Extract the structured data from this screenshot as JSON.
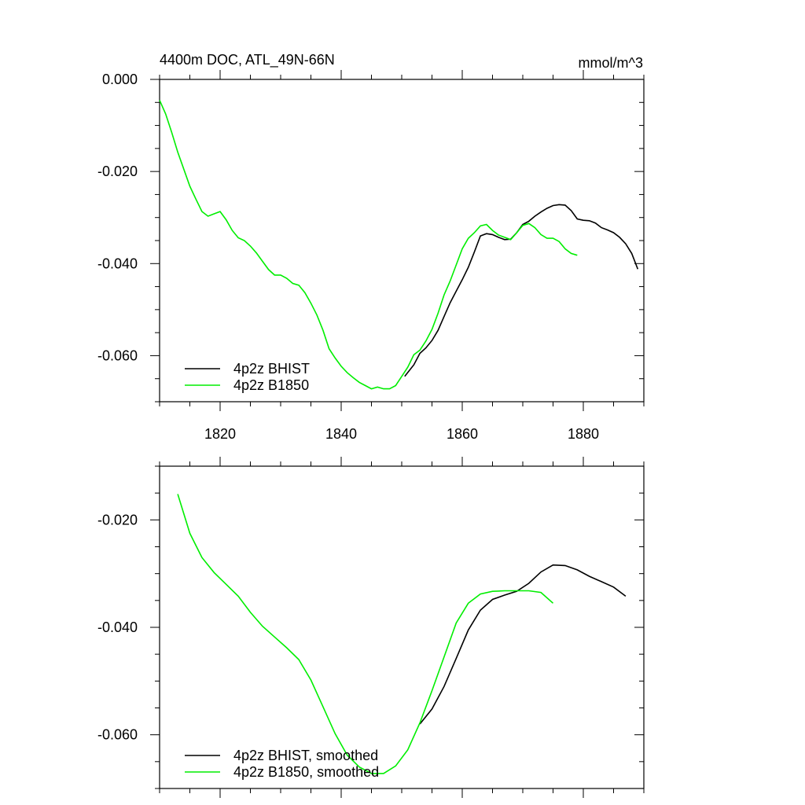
{
  "chart_data": [
    {
      "type": "line",
      "title": "4400m DOC, ATL_49N-66N",
      "units_label": "mmol/m^3",
      "xlim": [
        1810,
        1890
      ],
      "ylim": [
        -0.07,
        0.0
      ],
      "xticks": [
        1820,
        1840,
        1860,
        1880
      ],
      "xtick_labels": [
        "1820",
        "1840",
        "1860",
        "1880"
      ],
      "yticks": [
        0.0,
        -0.02,
        -0.04,
        -0.06
      ],
      "ytick_labels": [
        "0.000",
        "-0.020",
        "-0.040",
        "-0.060"
      ],
      "legend_position": "bottom-left",
      "series": [
        {
          "name": "4p2z BHIST",
          "color": "#000000",
          "x": [
            1850.5,
            1852,
            1853,
            1854,
            1855,
            1856,
            1857,
            1858,
            1859,
            1860,
            1861,
            1862,
            1863,
            1864,
            1865,
            1866,
            1867,
            1868,
            1869,
            1870,
            1871,
            1872,
            1873,
            1874,
            1875,
            1876,
            1877,
            1878,
            1879,
            1880,
            1881,
            1882,
            1883,
            1884,
            1885,
            1886,
            1887,
            1888,
            1889
          ],
          "y": [
            -0.0645,
            -0.062,
            -0.0595,
            -0.0583,
            -0.0567,
            -0.0545,
            -0.0515,
            -0.0485,
            -0.046,
            -0.0435,
            -0.0408,
            -0.0375,
            -0.034,
            -0.0335,
            -0.0337,
            -0.0343,
            -0.0348,
            -0.0347,
            -0.0333,
            -0.0315,
            -0.0308,
            -0.0297,
            -0.0288,
            -0.028,
            -0.0274,
            -0.0272,
            -0.0273,
            -0.0285,
            -0.0303,
            -0.0306,
            -0.0307,
            -0.0312,
            -0.0322,
            -0.0327,
            -0.0333,
            -0.0343,
            -0.0357,
            -0.0378,
            -0.0412
          ]
        },
        {
          "name": "4p2z B1850",
          "color": "#00ee00",
          "x": [
            1810,
            1811,
            1812,
            1813,
            1814,
            1815,
            1816,
            1817,
            1818,
            1819,
            1820,
            1821,
            1822,
            1823,
            1824,
            1825,
            1826,
            1827,
            1828,
            1829,
            1830,
            1831,
            1832,
            1833,
            1834,
            1835,
            1836,
            1837,
            1838,
            1839,
            1840,
            1841,
            1842,
            1843,
            1844,
            1845,
            1846,
            1847,
            1848,
            1849,
            1850,
            1851,
            1852,
            1853,
            1854,
            1855,
            1856,
            1857,
            1858,
            1859,
            1860,
            1861,
            1862,
            1863,
            1864,
            1865,
            1866,
            1867,
            1868,
            1869,
            1870,
            1871,
            1872,
            1873,
            1874,
            1875,
            1876,
            1877,
            1878,
            1879
          ],
          "y": [
            -0.0045,
            -0.0075,
            -0.0115,
            -0.0158,
            -0.0195,
            -0.0232,
            -0.026,
            -0.0287,
            -0.0297,
            -0.0292,
            -0.0287,
            -0.0305,
            -0.0328,
            -0.0344,
            -0.035,
            -0.0362,
            -0.0377,
            -0.0395,
            -0.0413,
            -0.0425,
            -0.0425,
            -0.0432,
            -0.0443,
            -0.0447,
            -0.0463,
            -0.0486,
            -0.0512,
            -0.0545,
            -0.0585,
            -0.0605,
            -0.0623,
            -0.0637,
            -0.0648,
            -0.0658,
            -0.0665,
            -0.0672,
            -0.0668,
            -0.0672,
            -0.0672,
            -0.0665,
            -0.0645,
            -0.0625,
            -0.0598,
            -0.0588,
            -0.0568,
            -0.0543,
            -0.0508,
            -0.0468,
            -0.0438,
            -0.0403,
            -0.0368,
            -0.0345,
            -0.0333,
            -0.0318,
            -0.0315,
            -0.0328,
            -0.0338,
            -0.0343,
            -0.0348,
            -0.0333,
            -0.0317,
            -0.0313,
            -0.0322,
            -0.0337,
            -0.0345,
            -0.0345,
            -0.0352,
            -0.0368,
            -0.0378,
            -0.0382
          ]
        }
      ]
    },
    {
      "type": "line",
      "title": "",
      "xlim": [
        1810,
        1890
      ],
      "ylim": [
        -0.07,
        -0.01
      ],
      "xticks": [
        1820,
        1840,
        1860,
        1880
      ],
      "yticks": [
        -0.02,
        -0.04,
        -0.06
      ],
      "ytick_labels": [
        "-0.020",
        "-0.040",
        "-0.060"
      ],
      "legend_position": "bottom-left",
      "series": [
        {
          "name": "4p2z BHIST, smoothed",
          "color": "#000000",
          "x": [
            1853,
            1855,
            1857,
            1859,
            1861,
            1863,
            1865,
            1867,
            1869,
            1871,
            1873,
            1875,
            1877,
            1879,
            1881,
            1883,
            1885,
            1887
          ],
          "y": [
            -0.058,
            -0.0552,
            -0.051,
            -0.0458,
            -0.0405,
            -0.0368,
            -0.0348,
            -0.034,
            -0.0333,
            -0.0318,
            -0.0297,
            -0.0284,
            -0.0285,
            -0.0293,
            -0.0305,
            -0.0315,
            -0.0325,
            -0.0342
          ]
        },
        {
          "name": "4p2z B1850, smoothed",
          "color": "#00ee00",
          "x": [
            1813,
            1815,
            1817,
            1819,
            1821,
            1823,
            1825,
            1827,
            1829,
            1831,
            1833,
            1835,
            1837,
            1839,
            1841,
            1843,
            1845,
            1847,
            1849,
            1851,
            1853,
            1855,
            1857,
            1859,
            1861,
            1863,
            1865,
            1867,
            1869,
            1871,
            1873,
            1875
          ],
          "y": [
            -0.0152,
            -0.0225,
            -0.027,
            -0.0298,
            -0.032,
            -0.0342,
            -0.0372,
            -0.0398,
            -0.0418,
            -0.0438,
            -0.046,
            -0.0498,
            -0.0548,
            -0.0598,
            -0.0638,
            -0.066,
            -0.0672,
            -0.0672,
            -0.0658,
            -0.0628,
            -0.0578,
            -0.0518,
            -0.0455,
            -0.0392,
            -0.0355,
            -0.0338,
            -0.0333,
            -0.0332,
            -0.0332,
            -0.0332,
            -0.0335,
            -0.0355
          ]
        }
      ]
    }
  ]
}
